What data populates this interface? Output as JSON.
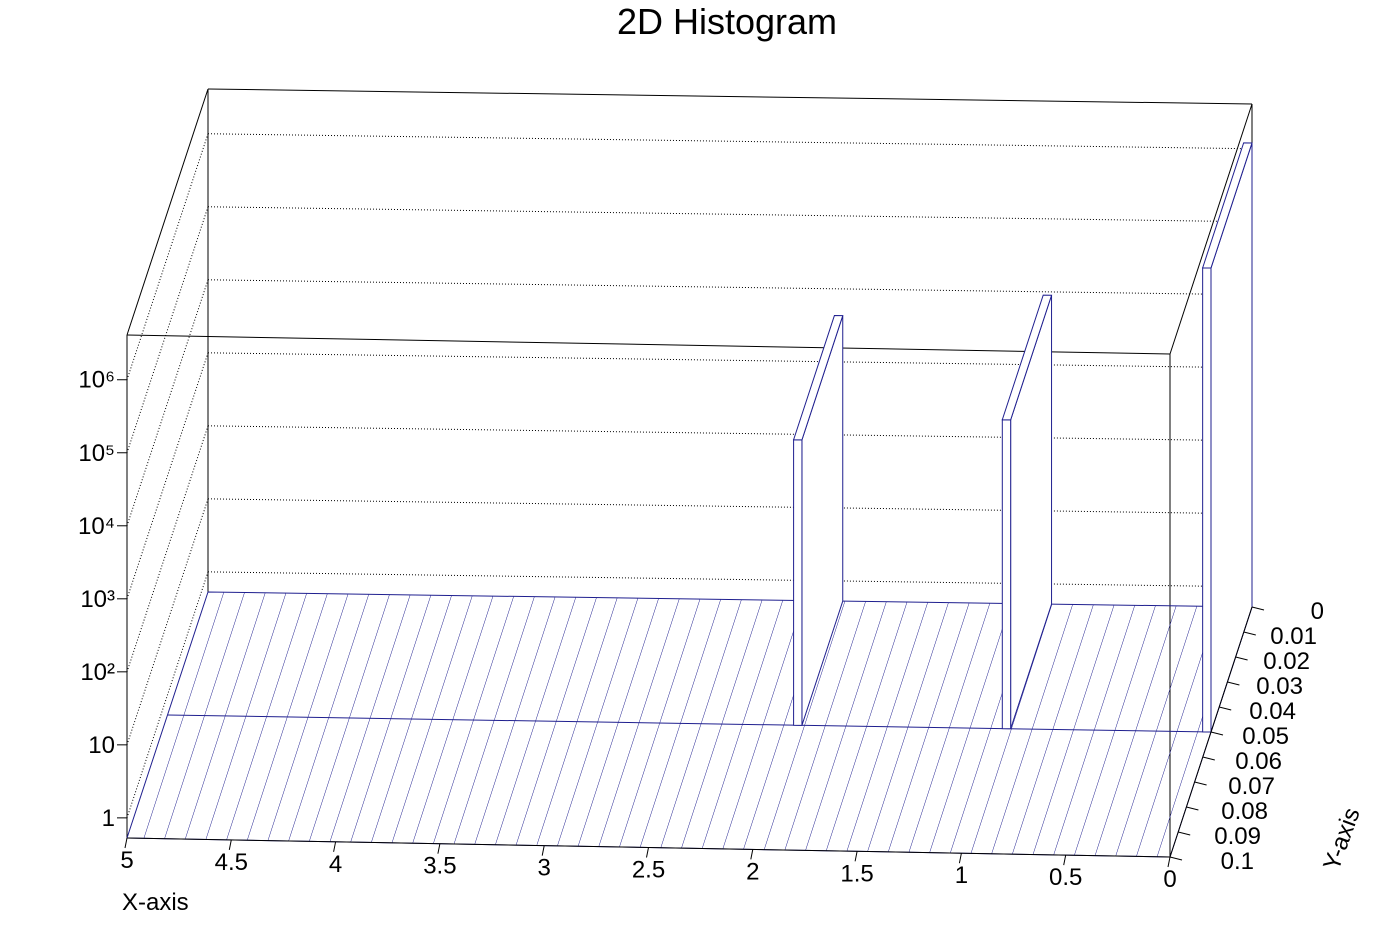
{
  "chart_data": {
    "type": "lego",
    "title": "2D Histogram",
    "x_label": "X-axis",
    "y_label": "Y-axis",
    "xlim": [
      0,
      5
    ],
    "ylim": [
      0,
      0.1
    ],
    "zlim": [
      0.53,
      4100000
    ],
    "zscale": "log",
    "xticks": [
      0,
      0.5,
      1,
      1.5,
      2,
      2.5,
      3,
      3.5,
      4,
      4.5,
      5
    ],
    "yticks": [
      0,
      0.01,
      0.02,
      0.03,
      0.04,
      0.05,
      0.06,
      0.07,
      0.08,
      0.09,
      0.1
    ],
    "zticks": [
      1,
      10,
      {
        "value": 100,
        "label": "10²"
      },
      {
        "value": 1000,
        "label": "10³"
      },
      {
        "value": 10000,
        "label": "10⁴"
      },
      {
        "value": 100000,
        "label": "10⁵"
      },
      {
        "value": 1000000,
        "label": "10⁶"
      }
    ],
    "ybins": [
      0,
      0.05,
      0.1
    ],
    "cells": [
      {
        "x": [
          1.96,
          2.0
        ],
        "y": [
          0,
          0.05
        ],
        "value": 4300
      },
      {
        "x": [
          0.96,
          1.0
        ],
        "y": [
          0,
          0.05
        ],
        "value": 9000
      },
      {
        "x": [
          0,
          0.04
        ],
        "y": [
          0,
          0.05
        ],
        "value": 1200000
      }
    ],
    "color": "#1f1f8f",
    "grid": true
  }
}
